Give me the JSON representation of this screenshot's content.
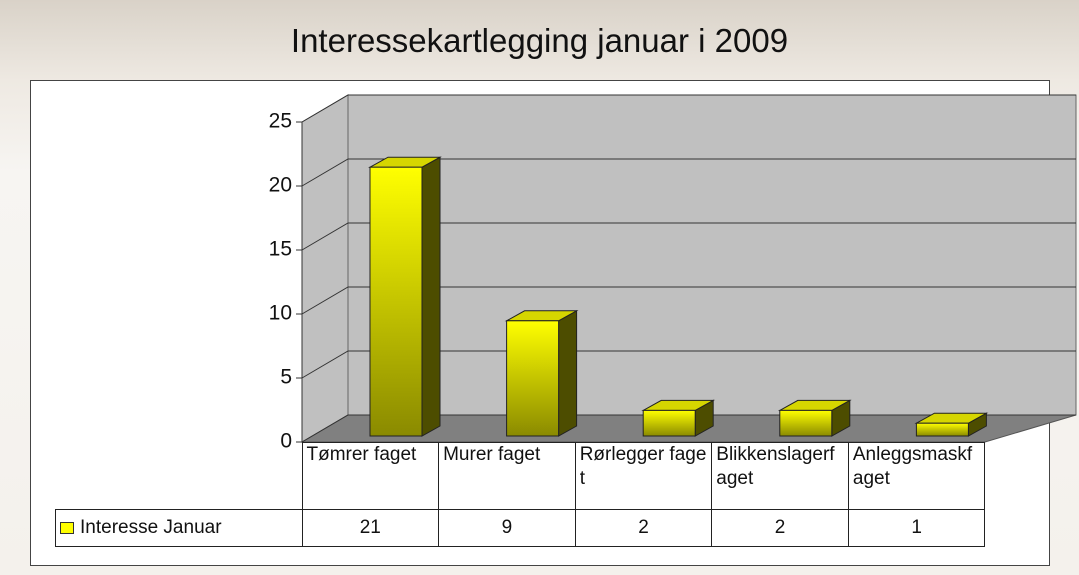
{
  "chart_data": {
    "type": "bar3d",
    "title": "Interessekartlegging januar i 2009",
    "categories": [
      "Tømrer faget",
      "Murer faget",
      "Rørlegger faget",
      "Blikkenslagerfaget",
      "Anleggsmaskfaget"
    ],
    "series": [
      {
        "name": "Interesse Januar",
        "color": "#ffff00",
        "values": [
          21,
          9,
          2,
          2,
          1
        ]
      }
    ],
    "ylim": [
      0,
      25
    ],
    "yticks": [
      0,
      5,
      10,
      15,
      20,
      25
    ],
    "grid": true,
    "data_table": true
  }
}
